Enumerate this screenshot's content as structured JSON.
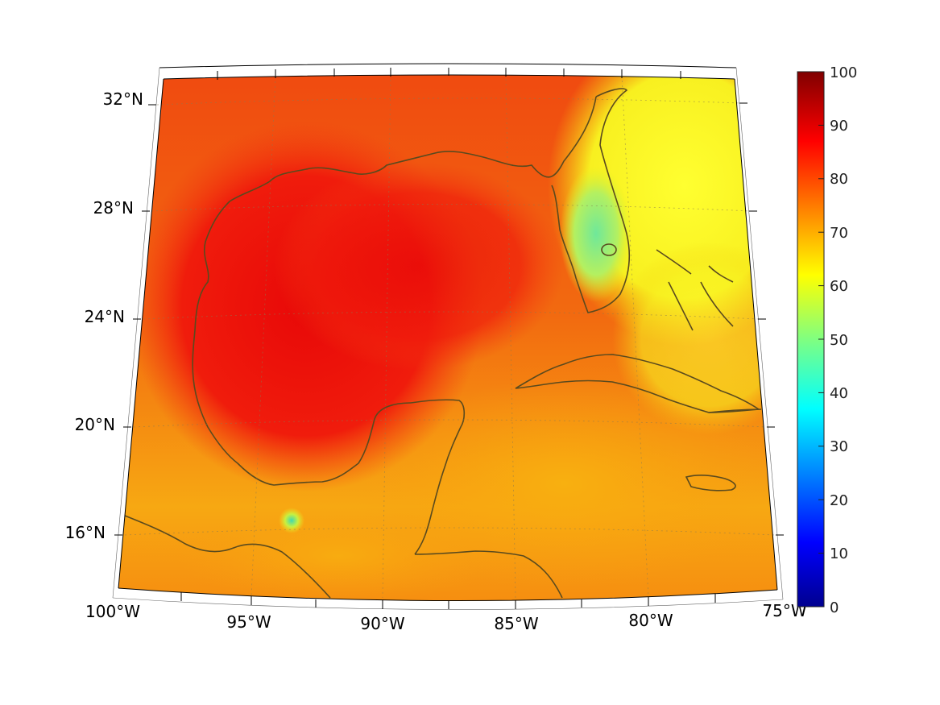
{
  "map": {
    "region": "Gulf of Mexico and Caribbean",
    "lat_labels": [
      "32°N",
      "28°N",
      "24°N",
      "20°N",
      "16°N"
    ],
    "lon_labels": [
      "100°W",
      "95°W",
      "90°W",
      "85°W",
      "80°W",
      "75°W"
    ],
    "coastline_color": "#5a4a1e"
  },
  "colorbar": {
    "ticks": [
      "100",
      "90",
      "80",
      "70",
      "60",
      "50",
      "40",
      "30",
      "20",
      "10",
      "0"
    ],
    "min": 0,
    "max": 100,
    "colormap": "jet"
  }
}
